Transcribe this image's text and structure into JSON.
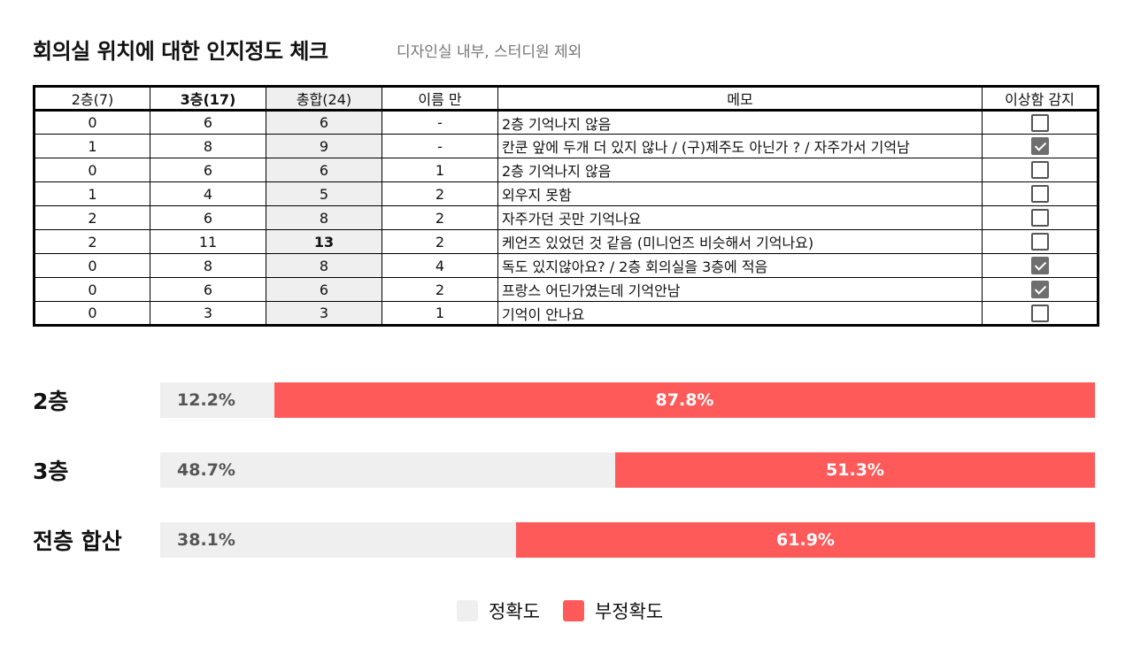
{
  "header": {
    "title": "회의실 위치에 대한 인지정도 체크",
    "subtitle": "디자인실 내부, 스터디원 제외"
  },
  "table": {
    "columns": [
      "2층(7)",
      "3층(17)",
      "총합(24)",
      "이름 만",
      "메모",
      "이상함 감지"
    ],
    "rows": [
      {
        "f2": "0",
        "f3": "6",
        "total": "6",
        "name": "-",
        "memo": "2층 기억나지 않음",
        "checked": false
      },
      {
        "f2": "1",
        "f3": "8",
        "total": "9",
        "name": "-",
        "memo": "칸쿤 앞에 두개 더 있지 않나 / (구)제주도 아닌가 ? / 자주가서 기억남",
        "checked": true
      },
      {
        "f2": "0",
        "f3": "6",
        "total": "6",
        "name": "1",
        "memo": "2층 기억나지 않음",
        "checked": false
      },
      {
        "f2": "1",
        "f3": "4",
        "total": "5",
        "name": "2",
        "memo": "외우지 못함",
        "checked": false
      },
      {
        "f2": "2",
        "f3": "6",
        "total": "8",
        "name": "2",
        "memo": "자주가던 곳만 기억나요",
        "checked": false
      },
      {
        "f2": "2",
        "f3": "11",
        "total": "13",
        "name": "2",
        "memo": "케언즈 있었던 것 같음 (미니언즈 비슷해서 기억나요)",
        "checked": false
      },
      {
        "f2": "0",
        "f3": "8",
        "total": "8",
        "name": "4",
        "memo": "독도 있지않아요? / 2층 회의실을 3층에 적음",
        "checked": true
      },
      {
        "f2": "0",
        "f3": "6",
        "total": "6",
        "name": "2",
        "memo": "프랑스 어딘가였는데 기억안남",
        "checked": true
      },
      {
        "f2": "0",
        "f3": "3",
        "total": "3",
        "name": "1",
        "memo": "기억이 안나요",
        "checked": false
      }
    ]
  },
  "chart_data": {
    "type": "bar",
    "orientation": "horizontal-stacked-100",
    "categories": [
      "2층",
      "3층",
      "전층 합산"
    ],
    "series": [
      {
        "name": "정확도",
        "values": [
          12.2,
          48.7,
          38.1
        ],
        "labels": [
          "12.2%",
          "48.7%",
          "38.1%"
        ],
        "color": "#efefef"
      },
      {
        "name": "부정확도",
        "values": [
          87.8,
          51.3,
          61.9
        ],
        "labels": [
          "87.8%",
          "51.3%",
          "61.9%"
        ],
        "color": "#ff5a5a"
      }
    ],
    "xlim": [
      0,
      100
    ],
    "legend_position": "bottom-center",
    "grid": false
  },
  "legend": {
    "accurate_label": "정확도",
    "inaccurate_label": "부정확도"
  }
}
